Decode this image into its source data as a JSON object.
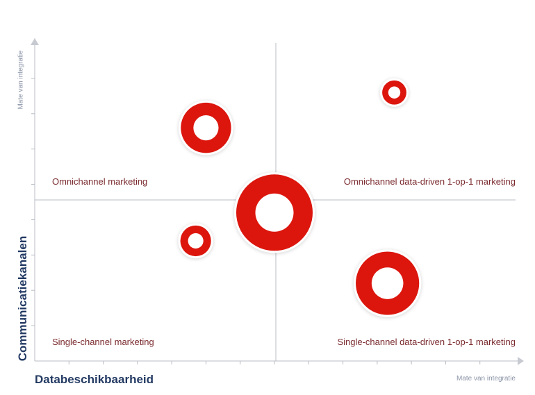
{
  "chart_data": {
    "type": "scatter",
    "title": "",
    "xlabel": "Databeschikbaarheid",
    "ylabel": "Communicatiekanalen",
    "x_axis_note": "Mate van integratie",
    "y_axis_note": "Mate van integratie",
    "xlim": [
      0,
      14
    ],
    "ylim": [
      0,
      9
    ],
    "grid": false,
    "quadrant_labels": {
      "top_left": "Omnichannel marketing",
      "top_right": "Omnichannel data-driven 1-op-1 marketing",
      "bottom_left": "Single-channel marketing",
      "bottom_right": "Single-channel data-driven 1-op-1 marketing"
    },
    "points": [
      {
        "x": 5.0,
        "y": 6.6,
        "size": 3
      },
      {
        "x": 10.5,
        "y": 7.6,
        "size": 1
      },
      {
        "x": 7.0,
        "y": 4.2,
        "size": 5
      },
      {
        "x": 4.7,
        "y": 3.4,
        "size": 1.5
      },
      {
        "x": 10.3,
        "y": 2.2,
        "size": 4
      }
    ],
    "colors": {
      "bubble": "#dc120f",
      "axis": "#b8bcc4",
      "text": "#7a2a2e",
      "label": "#233a63"
    }
  }
}
